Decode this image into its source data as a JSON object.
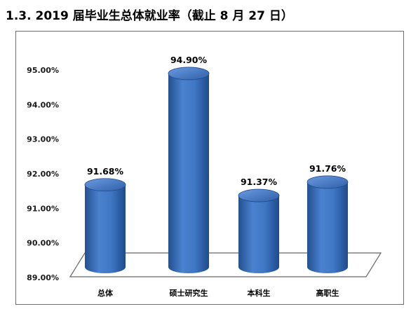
{
  "title": "1.3. 2019 届毕业生总体就业率（截止 8 月 27 日）",
  "colors": {
    "bar_fill": "#3f77c4",
    "bar_dark": "#1f4a8c",
    "bar_light": "#8fb4e6",
    "floor_line": "#666666"
  },
  "chart_data": {
    "type": "bar",
    "categories": [
      "总体",
      "硕士研究生",
      "本科生",
      "高职生"
    ],
    "values": [
      91.68,
      94.9,
      91.37,
      91.76
    ],
    "data_labels": [
      "91.68%",
      "94.90%",
      "91.37%",
      "91.76%"
    ],
    "ylim": [
      89.0,
      95.0
    ],
    "yticks": [
      89,
      90,
      91,
      92,
      93,
      94,
      95
    ],
    "ytick_labels": [
      "89.00%",
      "90.00%",
      "91.00%",
      "92.00%",
      "93.00%",
      "94.00%",
      "95.00%"
    ],
    "grid": false,
    "legend": "none",
    "style": "3d-cylinder"
  }
}
